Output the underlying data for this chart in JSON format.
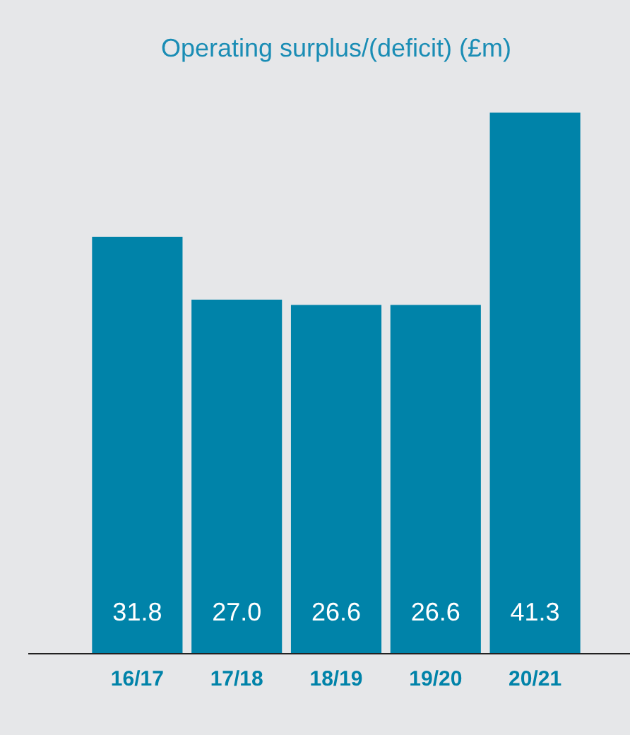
{
  "chart_data": {
    "type": "bar",
    "title": "Operating surplus/(deficit) (£m)",
    "categories": [
      "16/17",
      "17/18",
      "18/19",
      "19/20",
      "20/21"
    ],
    "values": [
      31.8,
      27.0,
      26.6,
      26.6,
      41.3
    ],
    "value_labels": [
      "31.8",
      "27.0",
      "26.6",
      "26.6",
      "41.3"
    ],
    "color": "#0083a9",
    "grid": false,
    "legend": false
  }
}
